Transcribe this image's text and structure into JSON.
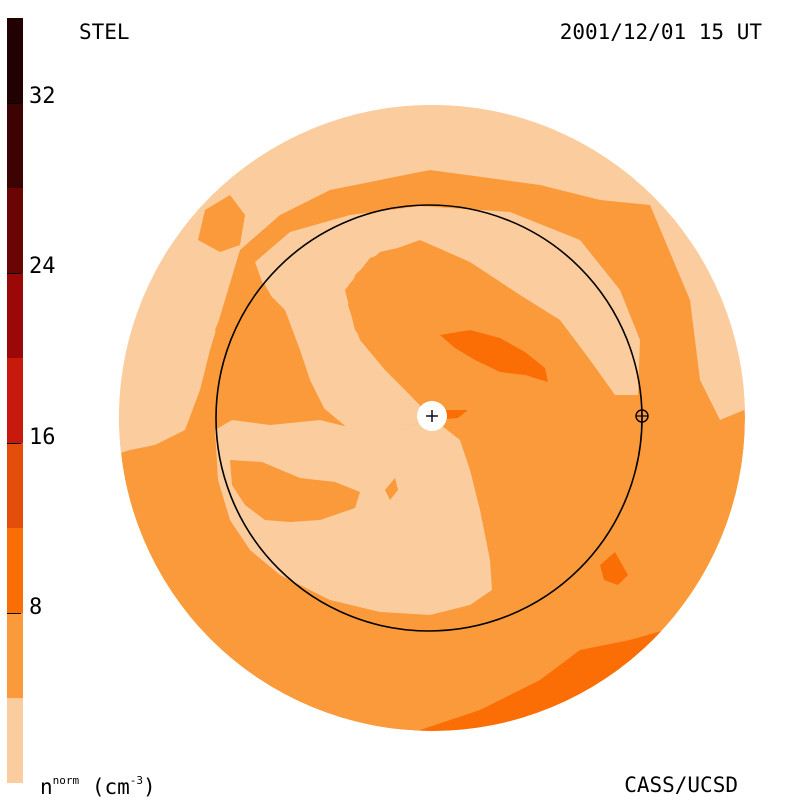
{
  "header": {
    "source": "STEL",
    "datetime": "2001/12/01 15 UT"
  },
  "footer": {
    "unit_base": "n",
    "unit_sup": "norm",
    "unit_rest": "(cm",
    "unit_exp": "-3",
    "unit_close": ")",
    "credit": "CASS/UCSD"
  },
  "colorbar": {
    "min": 0,
    "max": 36,
    "ticks": [
      "8",
      "16",
      "24",
      "32"
    ],
    "tick_values": [
      8,
      16,
      24,
      32
    ],
    "bins": [
      {
        "from": 0,
        "to": 4,
        "color": "#fbcc9d"
      },
      {
        "from": 4,
        "to": 8,
        "color": "#fa9a3a"
      },
      {
        "from": 8,
        "to": 12,
        "color": "#fb6e06"
      },
      {
        "from": 12,
        "to": 16,
        "color": "#e44d0a"
      },
      {
        "from": 16,
        "to": 20,
        "color": "#c7190c"
      },
      {
        "from": 20,
        "to": 24,
        "color": "#9a0808"
      },
      {
        "from": 24,
        "to": 28,
        "color": "#6b0404"
      },
      {
        "from": 28,
        "to": 32,
        "color": "#3d0303"
      },
      {
        "from": 32,
        "to": 36,
        "color": "#210101"
      }
    ]
  },
  "map": {
    "colors": {
      "low": "#fbcc9d",
      "mid": "#fa9a3a",
      "high": "#fb6e06",
      "orbit": "#000000",
      "sun": "#ffffff"
    }
  }
}
